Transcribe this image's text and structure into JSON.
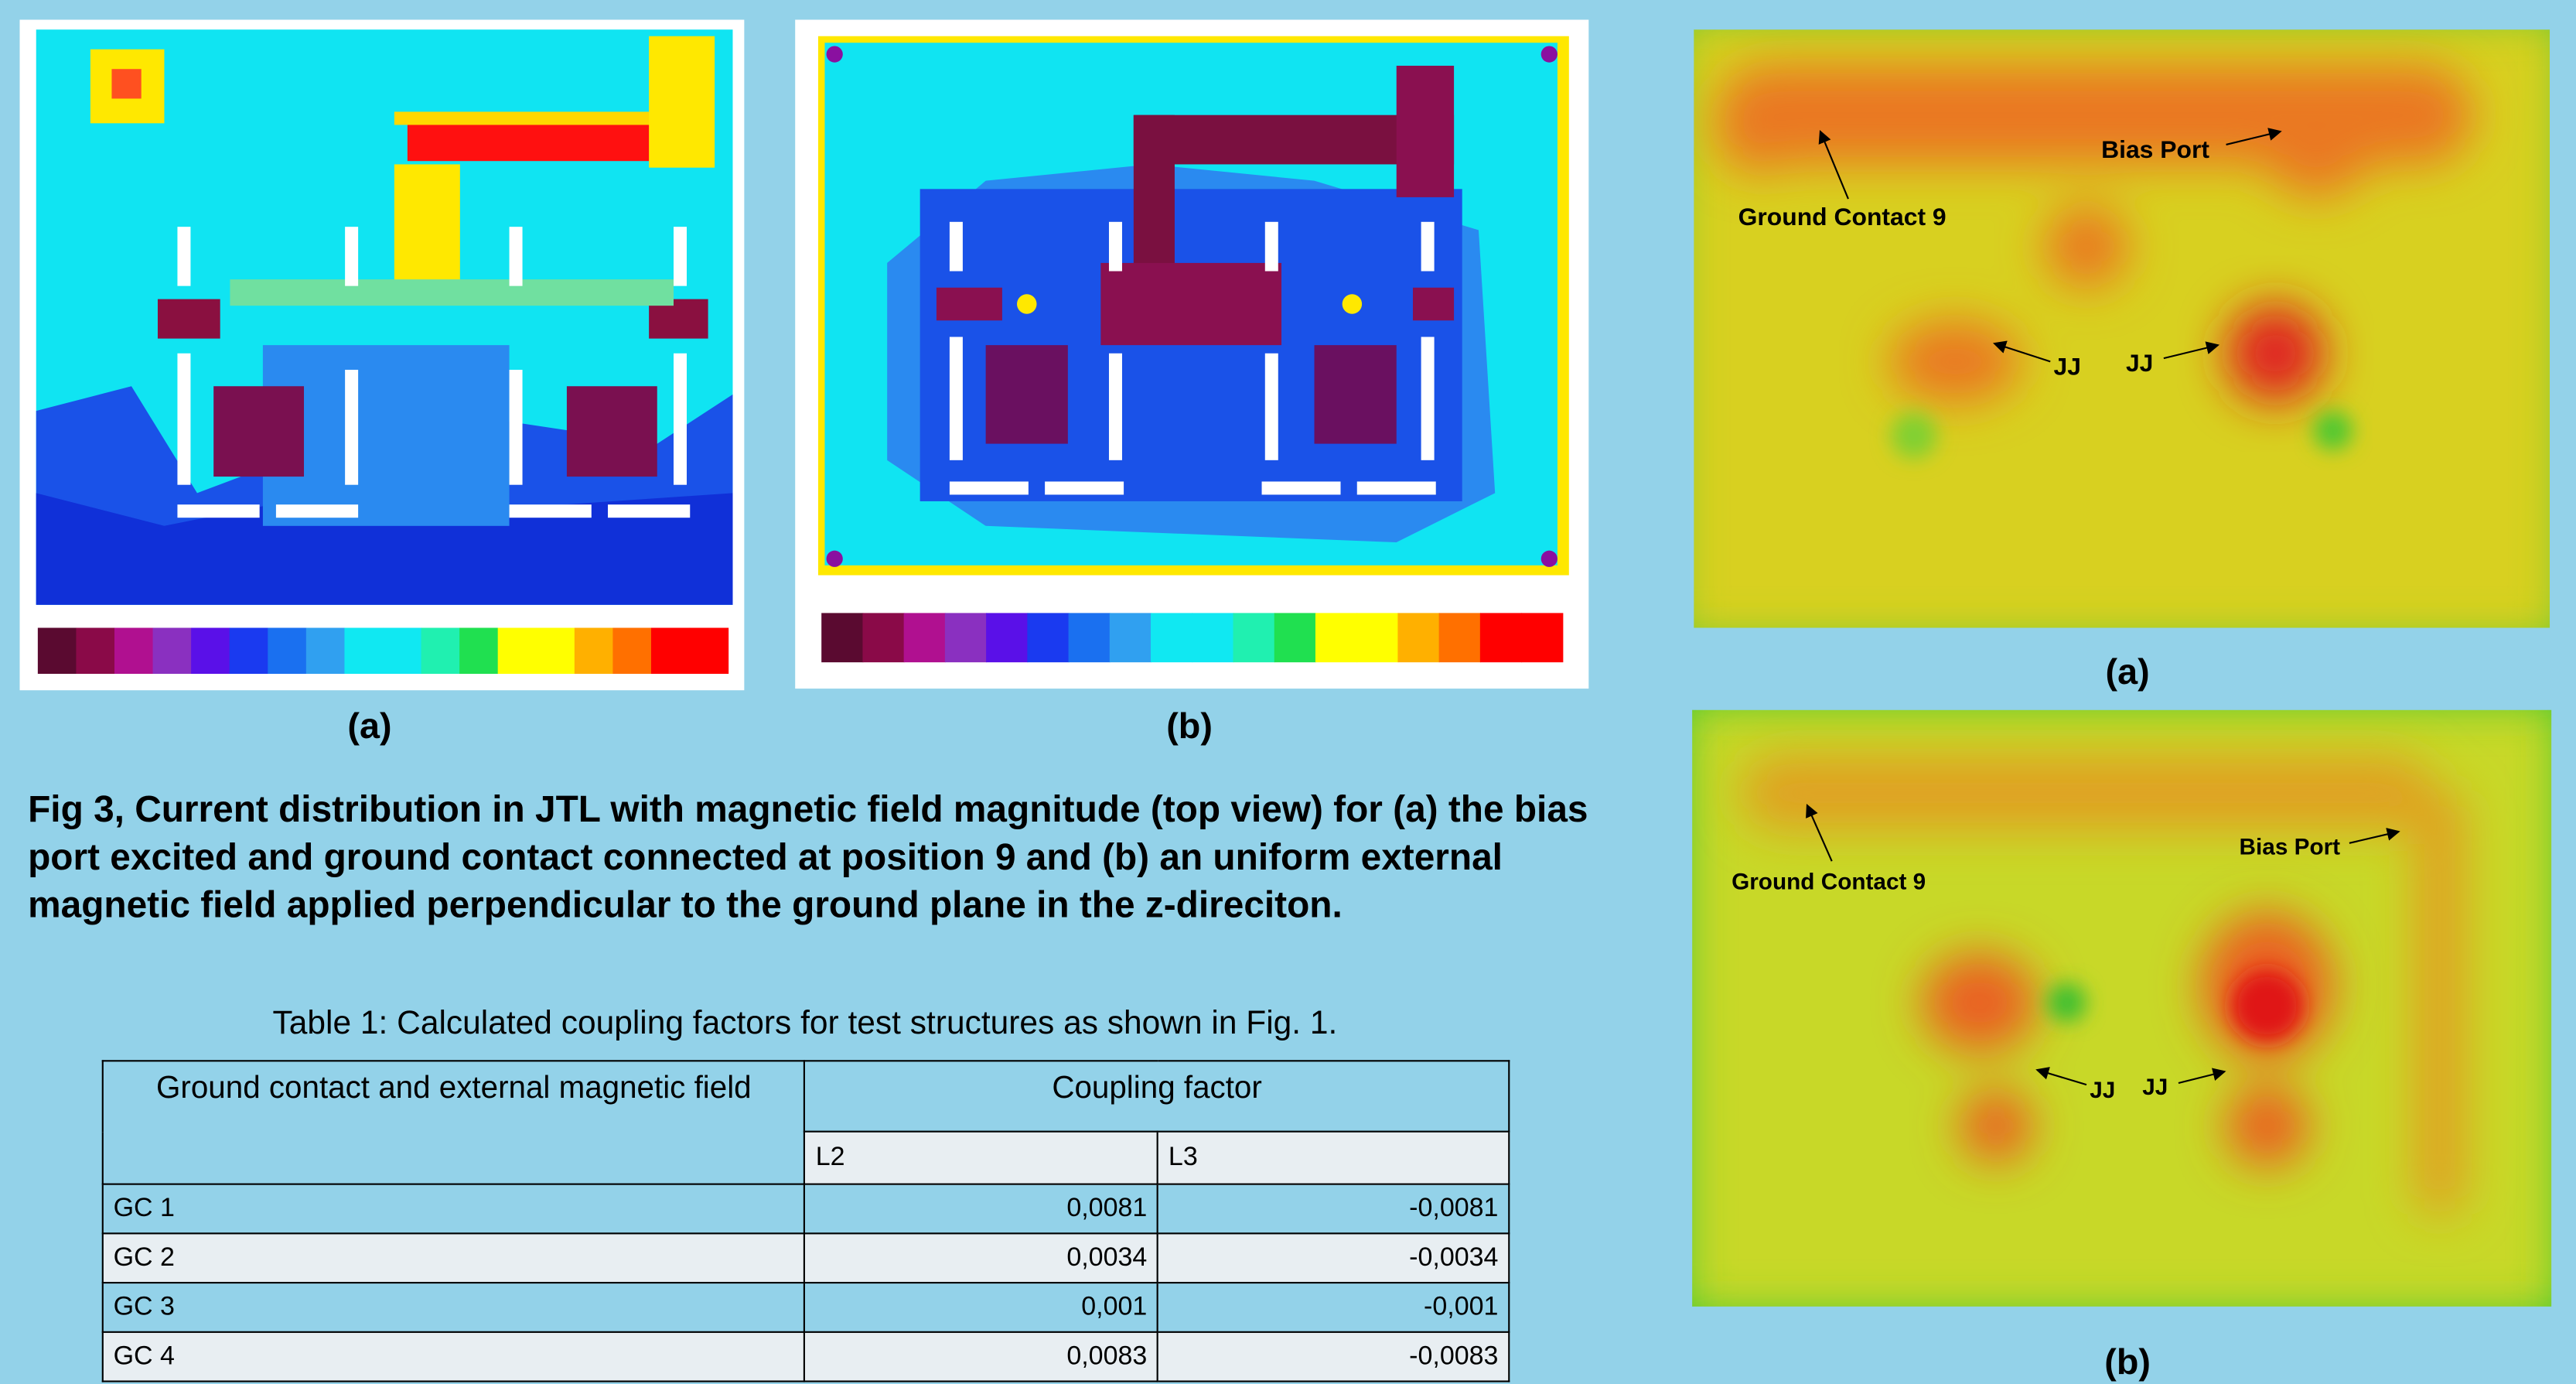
{
  "left_figures": [
    {
      "label": "(a)"
    },
    {
      "label": "(b)"
    }
  ],
  "right_figures": [
    {
      "label": "(a)",
      "annotations": [
        "Ground Contact 9",
        "Bias Port",
        "JJ",
        "JJ"
      ]
    },
    {
      "label": "(b)",
      "annotations": [
        "Ground Contact 9",
        "Bias Port",
        "JJ",
        "JJ"
      ]
    }
  ],
  "caption": "Fig 3, Current distribution in JTL with magnetic field magnitude (top view) for (a) the bias port excited and ground contact connected at position 9 and (b) an uniform external magnetic field applied perpendicular to the ground plane in the z-direciton.",
  "table": {
    "title": "Table 1: Calculated coupling factors for test structures as shown in Fig. 1.",
    "header": [
      "Ground contact and external magnetic field",
      "Coupling factor"
    ],
    "subheader": [
      "L2",
      "L3"
    ],
    "rows": [
      [
        "GC 1",
        "0,0081",
        "-0,0081"
      ],
      [
        "GC 2",
        "0,0034",
        "-0,0034"
      ],
      [
        "GC 3",
        "0,001",
        "-0,001"
      ],
      [
        "GC 4",
        "0,0083",
        "-0,0083"
      ]
    ]
  }
}
